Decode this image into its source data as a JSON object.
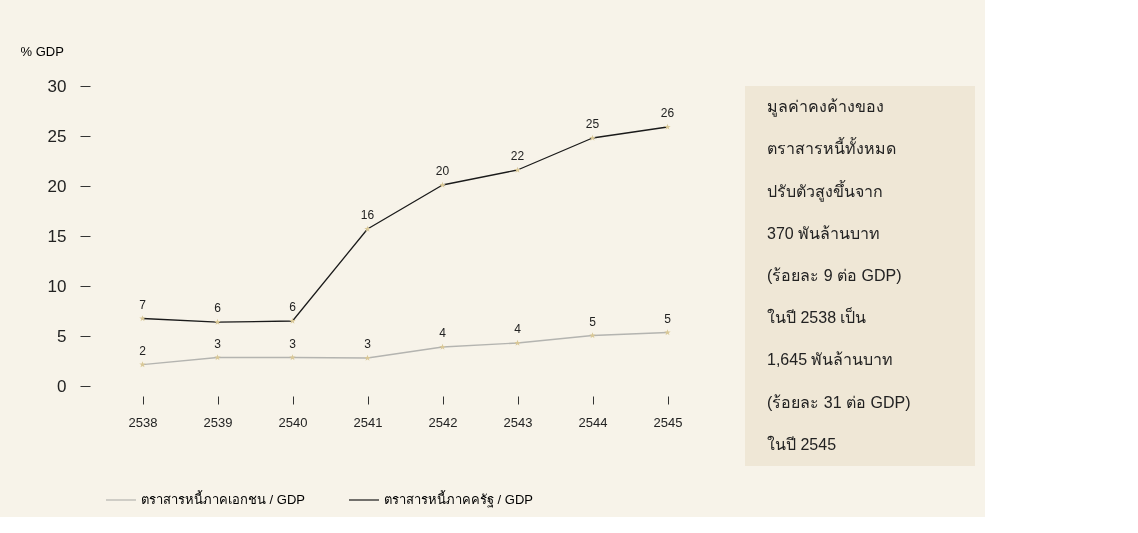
{
  "chart_data": {
    "type": "line",
    "ylabel": "% GDP",
    "categories": [
      "2538",
      "2539",
      "2540",
      "2541",
      "2542",
      "2543",
      "2544",
      "2545"
    ],
    "series": [
      {
        "name": "ตราสารหนี้ภาคเอกชน / GDP",
        "color": "#b4b4b0",
        "values": [
          2.14,
          2.85,
          2.85,
          2.8,
          3.9,
          4.3,
          5.05,
          5.35
        ],
        "value_labels": [
          "2",
          "3",
          "3",
          "3",
          "4",
          "4",
          "5",
          "5"
        ]
      },
      {
        "name": "ตราสารหนี้ภาคครัฐ / GDP",
        "color": "#1a1a1a",
        "values": [
          6.75,
          6.39,
          6.5,
          15.7,
          20.1,
          21.6,
          24.8,
          25.9
        ],
        "value_labels": [
          "7",
          "6",
          "6",
          "16",
          "20",
          "22",
          "25",
          "26"
        ]
      }
    ],
    "ylim": [
      0,
      30
    ],
    "yticks": [
      0,
      5,
      10,
      15,
      20,
      25,
      30
    ],
    "grid": false,
    "legend": "bottom",
    "marker": "star",
    "line_style": "solid",
    "annotations": [
      "มูลค่าคงค้างของ\nตราสารหนี้ทั้งหมด\nปรับตัวสูงขึ้นจาก\n370 พันล้านบาท\n(ร้อยละ 9 ต่อ GDP)\nในปี 2538 เป็น\n1,645 พันล้านบาท\n(ร้อยละ 31 ต่อ GDP)\nในปี 2545"
    ]
  }
}
